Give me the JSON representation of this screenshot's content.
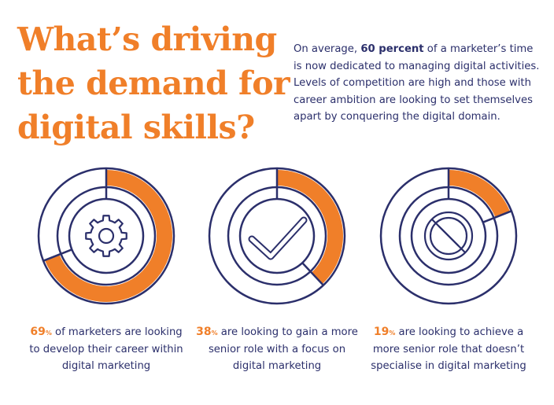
{
  "headline": {
    "line1": "What’s driving",
    "line2": "the demand for",
    "line3": "digital skills?"
  },
  "intro": {
    "before": "On average, ",
    "highlight": "60 percent",
    "after": " of a marketer’s time is now dedicated to managing digital activities. Levels of competition are high and those with career ambition are looking to set themselves apart by conquering the digital domain."
  },
  "colors": {
    "accent": "#f07f29",
    "navy": "#2b2f6b"
  },
  "chart_data": [
    {
      "type": "pie",
      "variant": "donut",
      "icon": "gear-icon",
      "value": 69,
      "unit": "%",
      "caption_value": "69",
      "caption_unit": "%",
      "caption_text": " of marketers are looking to develop their career within digital marketing"
    },
    {
      "type": "pie",
      "variant": "donut",
      "icon": "checkmark-icon",
      "value": 38,
      "unit": "%",
      "caption_value": "38",
      "caption_unit": "%",
      "caption_text": " are looking to gain a more senior role with a focus on digital marketing"
    },
    {
      "type": "pie",
      "variant": "donut",
      "icon": "prohibited-icon",
      "value": 19,
      "unit": "%",
      "caption_value": "19",
      "caption_unit": "%",
      "caption_text": " are looking to achieve a more senior role that doesn’t specialise in digital marketing"
    }
  ]
}
